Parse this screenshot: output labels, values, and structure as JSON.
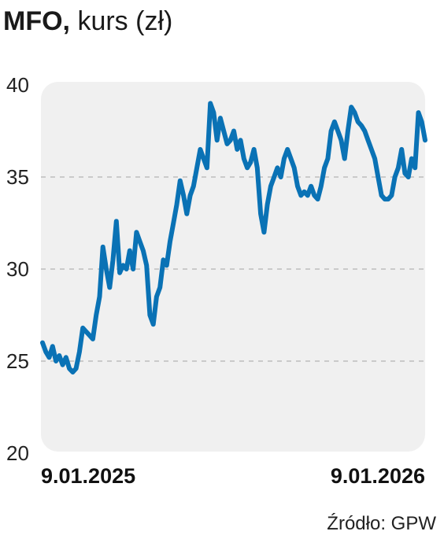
{
  "header": {
    "ticker": "MFO,",
    "subtitle": "kurs (zł)"
  },
  "source": "Źródło: GPW",
  "colors": {
    "line": "#0a72b5",
    "plot_bg": "#f0f0f0",
    "grid": "#bdbdbd"
  },
  "chart_data": {
    "type": "line",
    "title": "MFO, kurs (zł)",
    "xlabel": "",
    "ylabel": "",
    "ylim": [
      20,
      40
    ],
    "yticks": [
      20,
      25,
      30,
      35,
      40
    ],
    "x_tick_labels": [
      "9.01.2025",
      "9.01.2026"
    ],
    "grid": "horizontal dashed",
    "series": [
      {
        "values": [
          26.0,
          25.5,
          25.2,
          25.8,
          25.0,
          25.3,
          24.8,
          25.2,
          24.6,
          24.4,
          24.6,
          25.5,
          26.8,
          26.6,
          26.4,
          26.2,
          27.5,
          28.5,
          31.2,
          30.0,
          29.0,
          30.5,
          32.6,
          29.8,
          30.2,
          30.0,
          31.0,
          30.0,
          32.0,
          31.5,
          31.0,
          30.2,
          27.5,
          27.0,
          28.5,
          29.0,
          30.5,
          30.2,
          31.5,
          32.5,
          33.5,
          34.8,
          34.0,
          33.0,
          34.0,
          34.5,
          35.5,
          36.5,
          36.0,
          35.5,
          39.0,
          38.5,
          37.0,
          38.2,
          37.5,
          36.8,
          37.0,
          37.5,
          36.5,
          37.0,
          36.0,
          35.5,
          35.8,
          36.5,
          35.5,
          33.0,
          32.0,
          33.5,
          34.5,
          35.0,
          35.5,
          35.0,
          36.0,
          36.5,
          36.0,
          35.5,
          34.5,
          34.0,
          34.2,
          34.0,
          34.5,
          34.0,
          33.8,
          34.5,
          35.5,
          36.0,
          37.5,
          38.0,
          37.5,
          37.0,
          36.0,
          37.5,
          38.8,
          38.5,
          38.0,
          37.8,
          37.5,
          37.0,
          36.5,
          36.0,
          35.0,
          34.0,
          33.8,
          33.8,
          34.0,
          35.0,
          35.5,
          36.5,
          35.2,
          35.0,
          36.0,
          35.5,
          38.5,
          38.0,
          37.0
        ]
      }
    ]
  }
}
